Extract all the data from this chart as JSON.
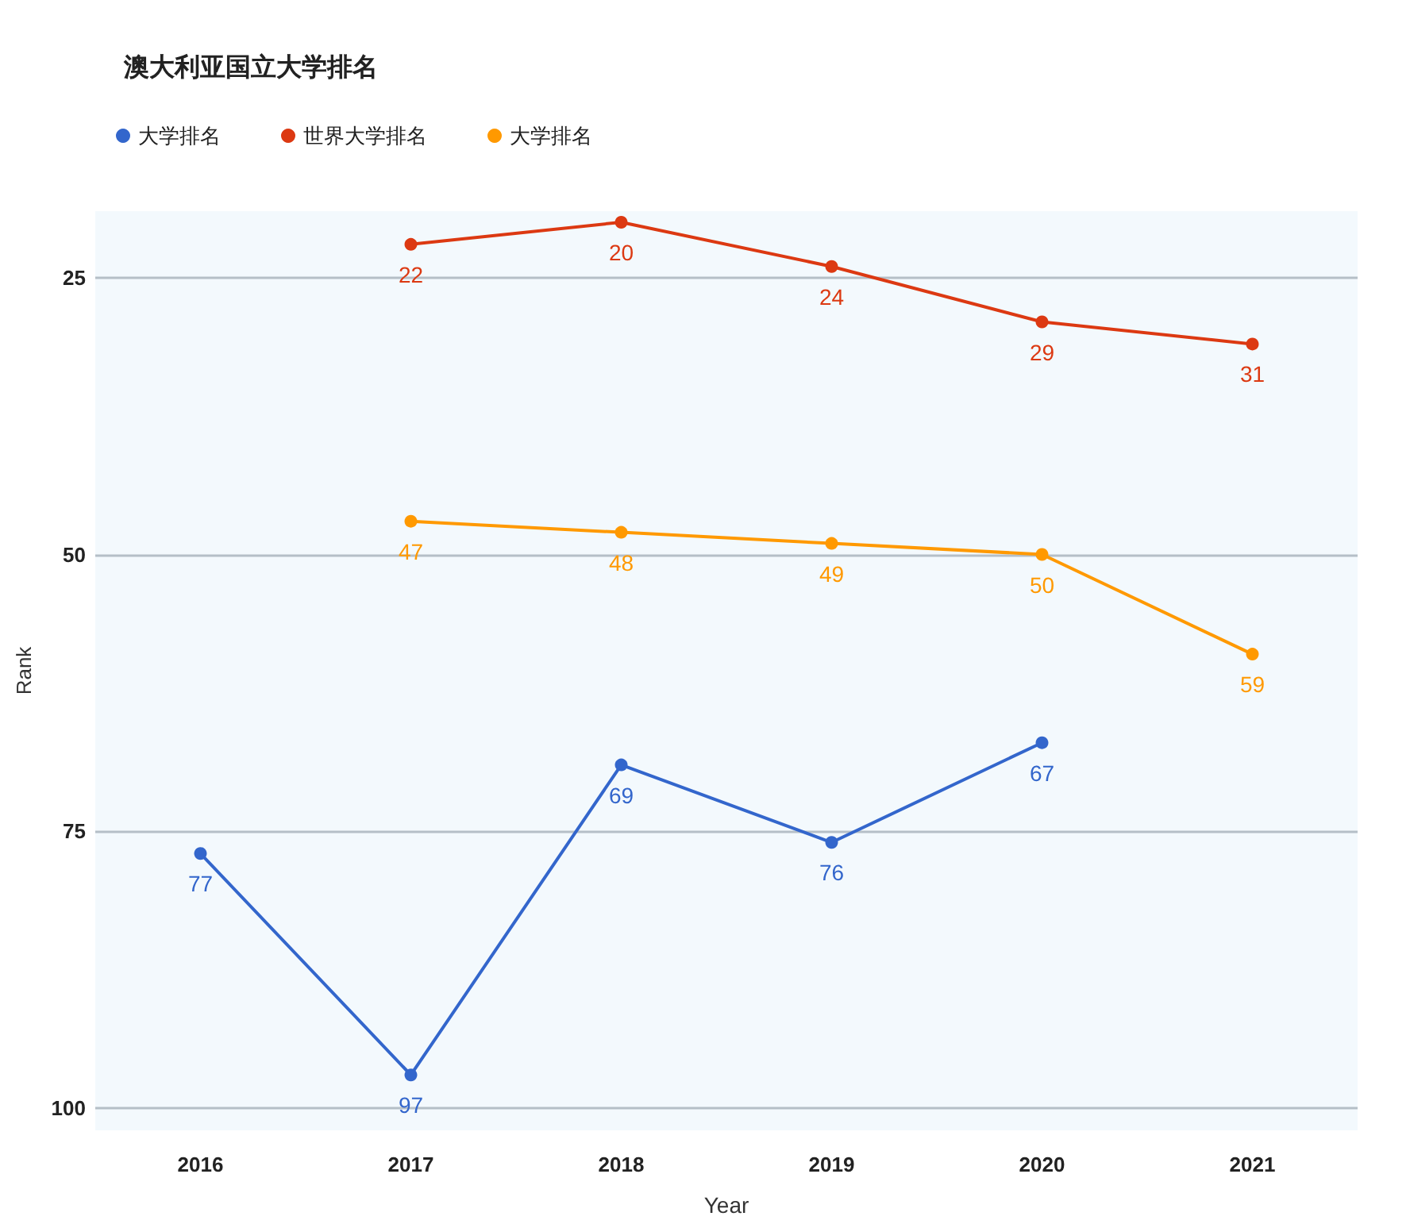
{
  "chart_data": {
    "type": "line",
    "title": "澳大利亚国立大学排名",
    "xlabel": "Year",
    "ylabel": "Rank",
    "categories": [
      "2016",
      "2017",
      "2018",
      "2019",
      "2020",
      "2021"
    ],
    "series": [
      {
        "name": "大学排名",
        "color": "#3366cc",
        "values": [
          77,
          97,
          69,
          76,
          67,
          null
        ]
      },
      {
        "name": "世界大学排名",
        "color": "#dc3912",
        "values": [
          null,
          22,
          20,
          24,
          29,
          31
        ]
      },
      {
        "name": "大学排名",
        "color": "#ff9900",
        "values": [
          null,
          47,
          48,
          49,
          50,
          59
        ]
      }
    ],
    "ylim": [
      102,
      19
    ],
    "yticks": [
      25,
      50,
      75,
      100
    ],
    "grid": "y",
    "legend": "top left",
    "marker": "circle",
    "line_style": "solid",
    "data_labels": true
  }
}
